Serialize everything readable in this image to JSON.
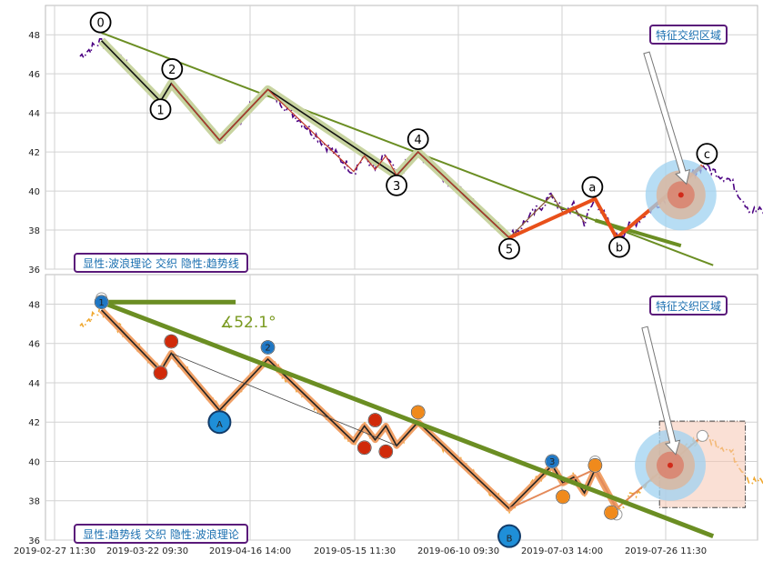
{
  "chart_data": {
    "type": "line",
    "x_ticks": [
      "2019-02-27 11:30",
      "2019-03-22 09:30",
      "2019-04-16 14:00",
      "2019-05-15 11:30",
      "2019-06-10 09:30",
      "2019-07-03 14:00",
      "2019-07-26 11:30"
    ],
    "y_ticks": [
      "36",
      "38",
      "40",
      "42",
      "44",
      "46",
      "48"
    ],
    "ylim": [
      36,
      49.5
    ],
    "grid": true,
    "top_panel": {
      "legend_text": "显性:波浪理论 交织 隐性:趋势线",
      "highlight_label": "特征交织区域",
      "price_color": "#4b0082",
      "wave_points": [
        {
          "label": "0",
          "x": 4,
          "y": 47.7
        },
        {
          "label": "1",
          "x": 15,
          "y": 44.6
        },
        {
          "label": "2",
          "x": 17,
          "y": 45.5
        },
        {
          "label": "",
          "x": 26,
          "y": 42.6
        },
        {
          "label": "",
          "x": 35,
          "y": 45.2
        },
        {
          "label": "",
          "x": 51,
          "y": 41.0
        },
        {
          "label": "",
          "x": 53,
          "y": 41.8
        },
        {
          "label": "",
          "x": 55,
          "y": 41.1
        },
        {
          "label": "",
          "x": 57,
          "y": 41.8
        },
        {
          "label": "3",
          "x": 59,
          "y": 40.8
        },
        {
          "label": "4",
          "x": 63,
          "y": 42.0
        },
        {
          "label": "5",
          "x": 80,
          "y": 37.6
        },
        {
          "label": "",
          "x": 88,
          "y": 39.8
        },
        {
          "label": "",
          "x": 90,
          "y": 38.9
        },
        {
          "label": "",
          "x": 92,
          "y": 39.2
        },
        {
          "label": "",
          "x": 94,
          "y": 38.4
        },
        {
          "label": "a",
          "x": 96,
          "y": 39.6
        },
        {
          "label": "b",
          "x": 100,
          "y": 37.6
        },
        {
          "label": "c",
          "x": 116,
          "y": 41.3
        }
      ]
    },
    "bottom_panel": {
      "legend_text": "显性:趋势线 交织 隐性:波浪理论",
      "highlight_label": "特征交织区域",
      "angle_label": "∡52.1°",
      "price_color": "#f0a830",
      "major_markers": [
        {
          "label": "A",
          "x": 26,
          "y": 42.0
        },
        {
          "label": "B",
          "x": 80,
          "y": 36.2
        }
      ],
      "minor_markers": [
        {
          "label": "1",
          "x": 4,
          "y": 48.1,
          "color": "#1f77c4"
        },
        {
          "label": "2",
          "x": 35,
          "y": 45.8,
          "color": "#1f77c4"
        },
        {
          "label": "3",
          "x": 88,
          "y": 40.0,
          "color": "#1f77c4"
        },
        {
          "label": "",
          "x": 15,
          "y": 44.5,
          "color": "#d02a0a"
        },
        {
          "label": "",
          "x": 17,
          "y": 46.1,
          "color": "#d02a0a"
        },
        {
          "label": "",
          "x": 55,
          "y": 42.1,
          "color": "#d02a0a"
        },
        {
          "label": "",
          "x": 53,
          "y": 40.7,
          "color": "#d02a0a"
        },
        {
          "label": "",
          "x": 57,
          "y": 40.5,
          "color": "#d02a0a"
        },
        {
          "label": "",
          "x": 63,
          "y": 42.5,
          "color": "#f08a1c"
        },
        {
          "label": "",
          "x": 90,
          "y": 38.2,
          "color": "#f08a1c"
        },
        {
          "label": "",
          "x": 96,
          "y": 39.8,
          "color": "#f08a1c"
        },
        {
          "label": "",
          "x": 99,
          "y": 37.4,
          "color": "#f08a1c"
        }
      ]
    }
  }
}
